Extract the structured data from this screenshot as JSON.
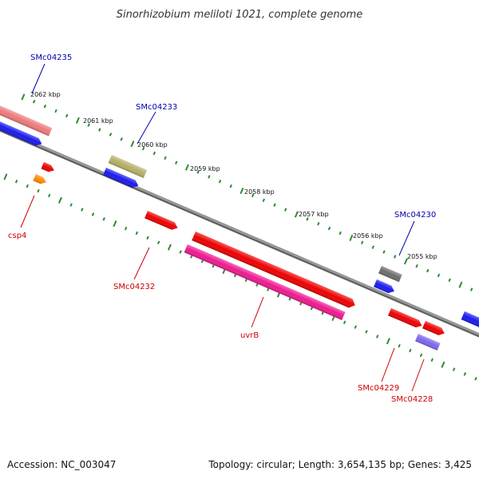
{
  "title": "Sinorhizobium meliloti 1021, complete genome",
  "footer": {
    "accession": "Accession: NC_003047",
    "summary": "Topology: circular; Length: 3,654,135 bp; Genes: 3,425"
  },
  "colors": {
    "backbone": "#8a8a8a",
    "tick": "#2e8b2e",
    "label_forward": "#0000aa",
    "label_reverse": "#cc0000"
  },
  "scale": {
    "labels": [
      "2062 kbp",
      "2061 kbp",
      "2060 kbp",
      "2059 kbp",
      "2058 kbp",
      "2057 kbp",
      "2056 kbp",
      "2055 kbp"
    ]
  },
  "gene_labels": {
    "forward": [
      "SMc04235",
      "SMc04233",
      "SMc04230"
    ],
    "reverse": [
      "csp4",
      "SMc04232",
      "uvrB",
      "SMc04229",
      "SMc04228"
    ]
  },
  "feature_colors": {
    "blue": "#1a1af0",
    "red": "#ee0000",
    "salmon": "#ee7a7a",
    "olive": "#b5b067",
    "gray": "#6e6e6e",
    "orange": "#ff8c00",
    "magenta": "#ee1a90",
    "lavender": "#7b68ee"
  }
}
